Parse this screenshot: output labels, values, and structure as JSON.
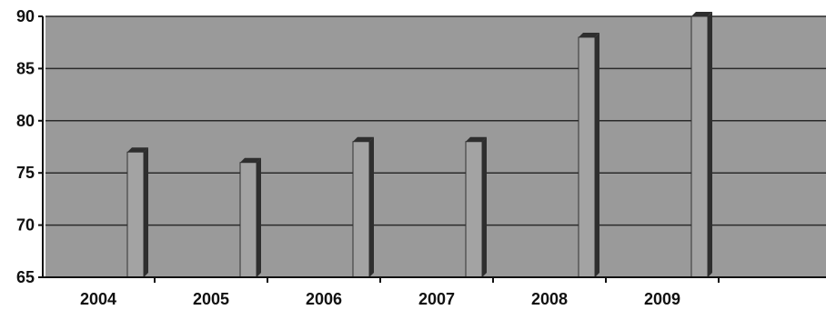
{
  "chart_data": {
    "type": "bar",
    "categories": [
      "2004",
      "2005",
      "2006",
      "2007",
      "2008",
      "2009"
    ],
    "values": [
      77,
      76,
      78,
      78,
      88,
      90
    ],
    "ylim": [
      65,
      90
    ],
    "yticks": [
      65,
      70,
      75,
      80,
      85,
      90
    ],
    "grid": true,
    "colors": {
      "plot_background": "#9a9a9a",
      "bar_front": "#a3a3a3",
      "bar_side": "#2e2e2e",
      "gridline": "#2a2a2a"
    }
  }
}
